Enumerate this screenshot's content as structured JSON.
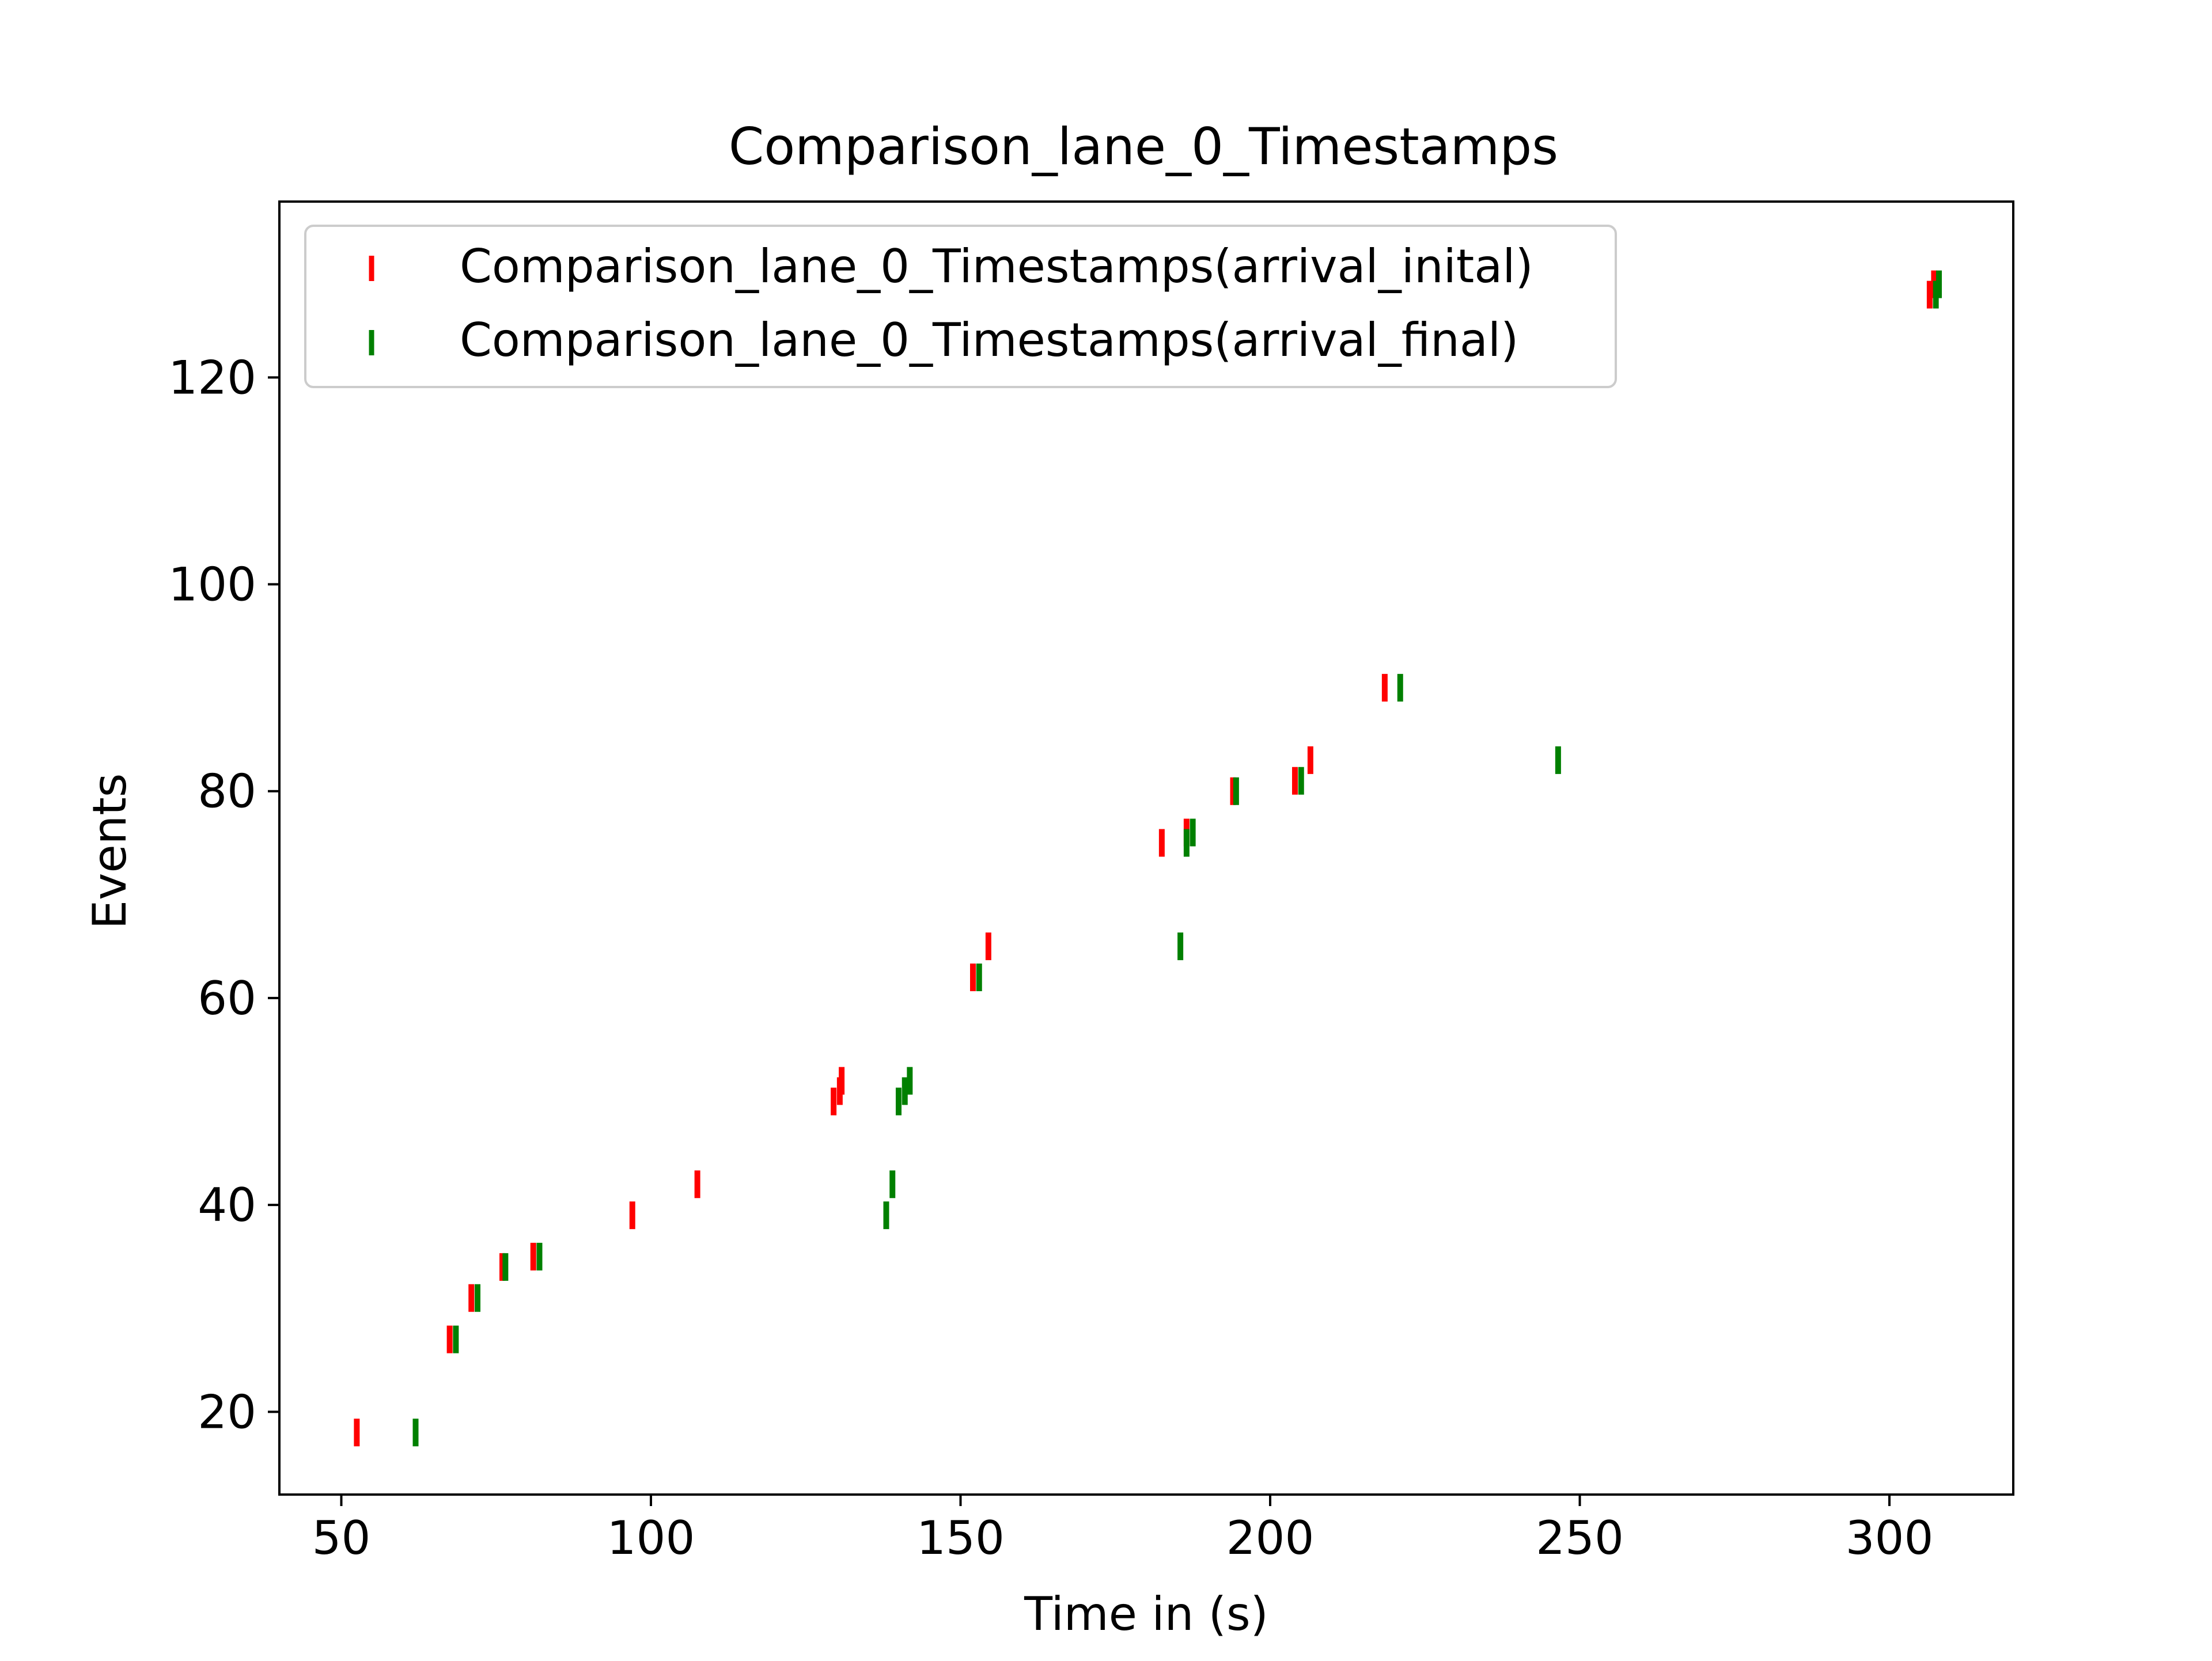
{
  "chart_data": {
    "type": "scatter",
    "title": "Comparison_lane_0_Timestamps",
    "xlabel": "Time in (s)",
    "ylabel": "Events",
    "xlim": [
      40,
      320
    ],
    "ylim": [
      12,
      137
    ],
    "xticks": [
      50,
      100,
      150,
      200,
      250,
      300
    ],
    "yticks": [
      20,
      40,
      60,
      80,
      100,
      120
    ],
    "xtick_labels": [
      "50",
      "100",
      "150",
      "200",
      "250",
      "300"
    ],
    "ytick_labels": [
      "20",
      "40",
      "60",
      "80",
      "100",
      "120"
    ],
    "grid": false,
    "legend_position": "top-left",
    "marker": "vertical-line",
    "series": [
      {
        "name": "Comparison_lane_0_Timestamps(arrival_inital)",
        "color": "#ff0000",
        "x": [
          52.5,
          67.5,
          71,
          76,
          81,
          97,
          107.5,
          129.5,
          130.5,
          130.8,
          152,
          154.5,
          182.5,
          186.5,
          194,
          204,
          206.5,
          218.5,
          306.5,
          307.2
        ],
        "y": [
          18,
          27,
          31,
          34,
          35,
          39,
          42,
          50,
          51,
          52,
          62,
          65,
          75,
          76,
          80,
          81,
          83,
          90,
          128,
          129
        ]
      },
      {
        "name": "Comparison_lane_0_Timestamps(arrival_final)",
        "color": "#008000",
        "x": [
          62,
          68.5,
          72,
          76.5,
          82,
          138,
          139,
          140,
          141,
          141.8,
          153,
          185.5,
          186.5,
          187.5,
          194.5,
          205,
          221,
          246.5,
          307.5,
          308
        ],
        "y": [
          18,
          27,
          31,
          34,
          35,
          39,
          42,
          50,
          51,
          52,
          62,
          65,
          75,
          76,
          80,
          81,
          90,
          83,
          128,
          129
        ]
      }
    ]
  }
}
